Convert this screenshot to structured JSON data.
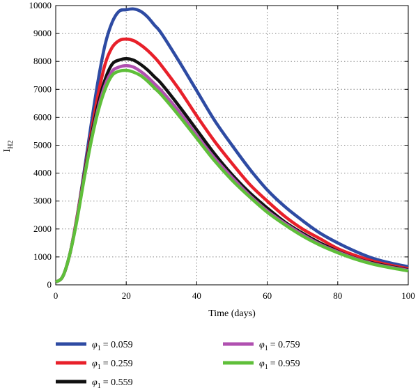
{
  "chart_data": {
    "type": "line",
    "title": "",
    "xlabel": "Time (days)",
    "ylabel": {
      "main": "I",
      "sub": "H2"
    },
    "xlim": [
      0,
      100
    ],
    "ylim": [
      0,
      10000
    ],
    "xticks": [
      0,
      20,
      40,
      60,
      80,
      100
    ],
    "yticks": [
      0,
      1000,
      2000,
      3000,
      4000,
      5000,
      6000,
      7000,
      8000,
      9000,
      10000
    ],
    "grid": true,
    "legend_position": "bottom",
    "x": [
      0,
      2,
      4,
      6,
      8,
      10,
      12,
      14,
      16,
      18,
      20,
      22,
      24,
      26,
      28,
      30,
      35,
      40,
      45,
      50,
      55,
      60,
      65,
      70,
      75,
      80,
      85,
      90,
      95,
      100
    ],
    "series": [
      {
        "symbol": "φ",
        "sub": "1",
        "value_label": "= 0.059",
        "color": "#2e4ba3",
        "values": [
          100,
          300,
          1100,
          2400,
          4000,
          5700,
          7300,
          8600,
          9400,
          9800,
          9850,
          9880,
          9800,
          9600,
          9300,
          9000,
          8000,
          6950,
          5900,
          5000,
          4150,
          3400,
          2800,
          2300,
          1850,
          1500,
          1200,
          950,
          780,
          650
        ]
      },
      {
        "symbol": "φ",
        "sub": "1",
        "value_label": "= 0.259",
        "color": "#e8202a",
        "values": [
          100,
          300,
          1100,
          2400,
          3900,
          5400,
          6800,
          7900,
          8500,
          8750,
          8800,
          8750,
          8600,
          8400,
          8150,
          7850,
          7000,
          6050,
          5150,
          4350,
          3600,
          3000,
          2450,
          2000,
          1650,
          1300,
          1050,
          850,
          700,
          580
        ]
      },
      {
        "symbol": "φ",
        "sub": "1",
        "value_label": "= 0.559",
        "color": "#111111",
        "values": [
          100,
          300,
          1100,
          2350,
          3850,
          5250,
          6450,
          7350,
          7900,
          8050,
          8100,
          8050,
          7900,
          7700,
          7450,
          7200,
          6400,
          5550,
          4700,
          3950,
          3300,
          2750,
          2250,
          1850,
          1500,
          1200,
          950,
          780,
          650,
          540
        ]
      },
      {
        "symbol": "φ",
        "sub": "1",
        "value_label": "= 0.759",
        "color": "#b050b0",
        "values": [
          100,
          300,
          1100,
          2350,
          3800,
          5150,
          6300,
          7150,
          7650,
          7800,
          7850,
          7800,
          7650,
          7450,
          7200,
          6950,
          6200,
          5350,
          4550,
          3850,
          3200,
          2650,
          2200,
          1800,
          1450,
          1180,
          940,
          760,
          630,
          520
        ]
      },
      {
        "symbol": "φ",
        "sub": "1",
        "value_label": "= 0.959",
        "color": "#5fbf3a",
        "values": [
          100,
          300,
          1100,
          2300,
          3750,
          5100,
          6200,
          7000,
          7500,
          7650,
          7680,
          7620,
          7500,
          7300,
          7050,
          6800,
          6050,
          5250,
          4450,
          3750,
          3150,
          2600,
          2150,
          1750,
          1420,
          1150,
          920,
          740,
          610,
          500
        ]
      }
    ]
  }
}
